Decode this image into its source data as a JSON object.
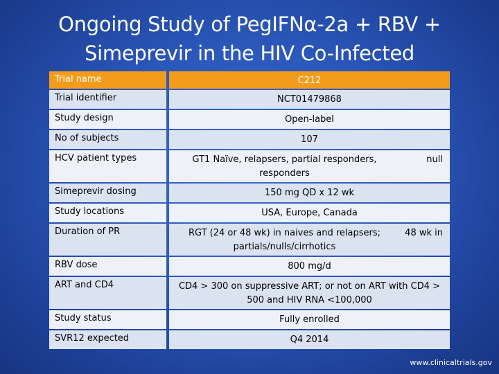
{
  "slide": {
    "title_line1": "Ongoing Study of PegIFNα-2a + RBV +",
    "title_line2": "Simeprevir in the HIV Co-Infected",
    "footer": "www.clinicaltrials.gov"
  },
  "table": {
    "header": {
      "label": "Trial name",
      "value": "C212"
    },
    "rows": [
      {
        "label": "Trial identifier",
        "value": "NCT01479868"
      },
      {
        "label": "Study design",
        "value": "Open-label"
      },
      {
        "label": "No of subjects",
        "value": "107"
      },
      {
        "label": "HCV patient types",
        "value": "GT1 Naïve, relapsers, partial responders, responders",
        "extra": "null"
      },
      {
        "label": "Simeprevir dosing",
        "value": "150 mg QD x 12 wk"
      },
      {
        "label": "Study locations",
        "value": "USA, Europe, Canada"
      },
      {
        "label": "Duration of PR",
        "value": "RGT (24 or 48 wk) in naives and relapsers; partials/nulls/cirrhotics",
        "extra": "48 wk in"
      },
      {
        "label": "RBV dose",
        "value": "800 mg/d"
      },
      {
        "label": "ART and CD4",
        "value": "CD4 > 300 on suppressive ART; or not on ART with CD4 > 500 and HIV RNA <100,000"
      },
      {
        "label": "Study status",
        "value": "Fully enrolled"
      },
      {
        "label": "SVR12 expected",
        "value": "Q4 2014"
      }
    ]
  }
}
